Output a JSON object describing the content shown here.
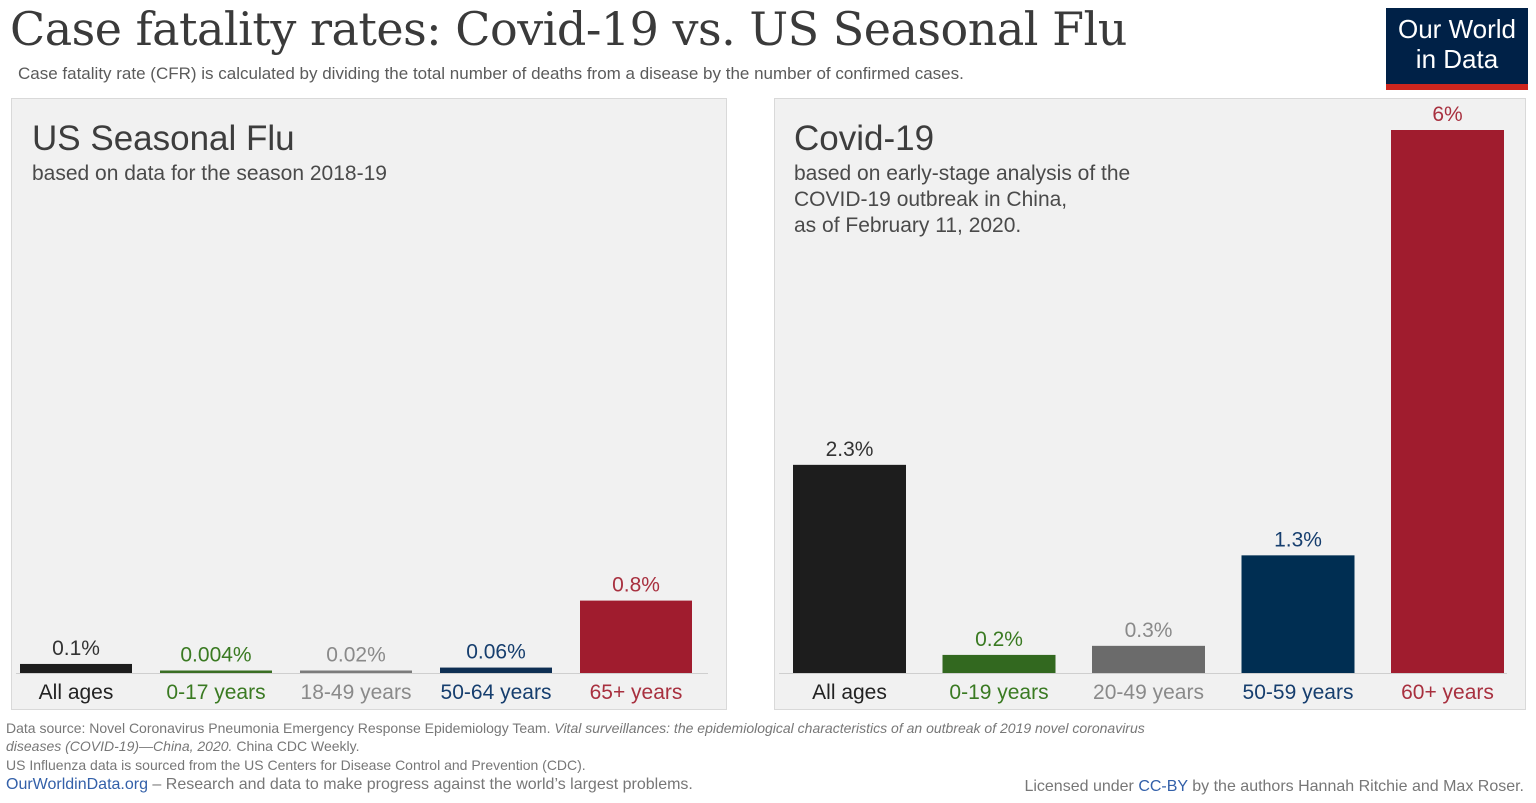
{
  "header": {
    "title": "Case fatality rates: Covid-19 vs. US Seasonal Flu",
    "subtitle": "Case fatality rate (CFR) is calculated by dividing the total number of deaths from a disease by the number of confirmed cases."
  },
  "logo": {
    "line1": "Our World",
    "line2": "in Data",
    "bg": "#002147",
    "accent": "#ce261e"
  },
  "panels": {
    "flu": {
      "title": "US Seasonal Flu",
      "subtitle": "based on data for the season 2018-19"
    },
    "covid": {
      "title": "Covid-19",
      "subtitle": "based on early-stage analysis of the\nCOVID-19 outbreak in China,\nas of February 11, 2020."
    }
  },
  "chart_data": [
    {
      "type": "bar",
      "title": "US Seasonal Flu",
      "categories": [
        "All ages",
        "0-17 years",
        "18-49 years",
        "50-64 years",
        "65+ years"
      ],
      "values": [
        0.1,
        0.004,
        0.02,
        0.06,
        0.8
      ],
      "labels": [
        "0.1%",
        "0.004%",
        "0.02%",
        "0.06%",
        "0.8%"
      ],
      "colors": [
        "#1d1d1d",
        "#3a6e23",
        "#7b7b7b",
        "#0e2f53",
        "#a01c2e"
      ],
      "label_colors": [
        "#333333",
        "#3a7a22",
        "#8a8a8a",
        "#163e6e",
        "#a8303f"
      ],
      "ylim": [
        0,
        6
      ]
    },
    {
      "type": "bar",
      "title": "Covid-19",
      "categories": [
        "All ages",
        "0-19 years",
        "20-49 years",
        "50-59 years",
        "60+ years"
      ],
      "values": [
        2.3,
        0.2,
        0.3,
        1.3,
        6
      ],
      "labels": [
        "2.3%",
        "0.2%",
        "0.3%",
        "1.3%",
        "6%"
      ],
      "colors": [
        "#1d1d1d",
        "#32681f",
        "#6b6b6b",
        "#002e52",
        "#a01c2e"
      ],
      "label_colors": [
        "#333333",
        "#3a7a22",
        "#8a8a8a",
        "#163e6e",
        "#a8303f"
      ],
      "ylim": [
        0,
        6
      ]
    }
  ],
  "footer": {
    "source_prefix": "Data source: Novel Coronavirus Pneumonia Emergency Response Epidemiology Team. ",
    "source_italic_1": "Vital surveillances: the epidemiological characteristics of an outbreak of 2019 novel coronavirus",
    "source_italic_2": "diseases (COVID-19)—China, 2020.",
    "source_suffix": " China CDC Weekly.",
    "cdc_note": "US Influenza data is sourced from the US Centers for Disease Control and Prevention (CDC).",
    "site": "OurWorldinData.org",
    "tagline": " – Research and data to make progress against the world’s largest problems.",
    "license_prefix": "Licensed under ",
    "license_link": "CC-BY",
    "license_suffix": " by the authors Hannah Ritchie and Max Roser."
  }
}
